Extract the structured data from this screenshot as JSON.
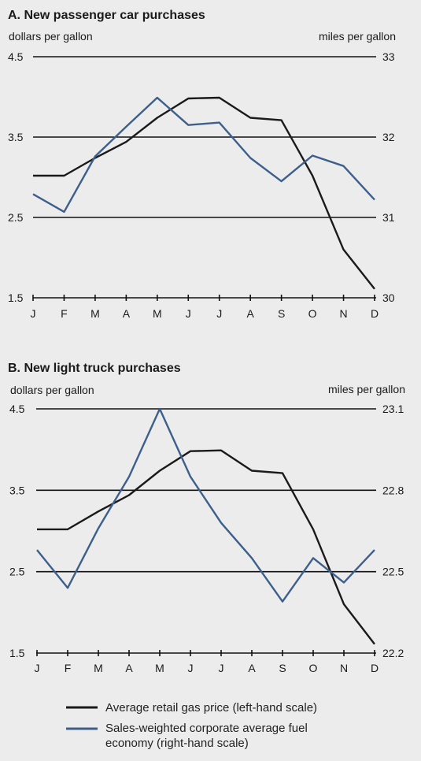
{
  "months": [
    "J",
    "F",
    "M",
    "A",
    "M",
    "J",
    "J",
    "A",
    "S",
    "O",
    "N",
    "D"
  ],
  "colors": {
    "gas_price": "#1a1a1a",
    "fuel_economy": "#3d5f8c"
  },
  "legend": {
    "gas_price": "Average retail gas price (left-hand scale)",
    "fuel_economy_line1": "Sales-weighted corporate average fuel",
    "fuel_economy_line2": "economy (right-hand scale)"
  },
  "chart_data": [
    {
      "type": "line",
      "title": "A. New passenger car purchases",
      "ylabel_left": "dollars per gallon",
      "ylabel_right": "miles per gallon",
      "categories": [
        "J",
        "F",
        "M",
        "A",
        "M",
        "J",
        "J",
        "A",
        "S",
        "O",
        "N",
        "D"
      ],
      "ylim_left": [
        1.5,
        4.5
      ],
      "ylim_right": [
        30,
        33
      ],
      "left_ticks": [
        "4.5",
        "3.5",
        "2.5",
        "1.5"
      ],
      "right_ticks": [
        "33",
        "32",
        "31",
        "30"
      ],
      "grid": true,
      "series": [
        {
          "axis": "left",
          "values": [
            3.02,
            3.02,
            3.24,
            3.44,
            3.74,
            3.98,
            3.99,
            3.74,
            3.71,
            3.02,
            2.1,
            1.61
          ]
        },
        {
          "axis": "right",
          "values": [
            31.29,
            31.07,
            31.76,
            32.13,
            32.49,
            32.15,
            32.18,
            31.74,
            31.45,
            31.77,
            31.64,
            31.22
          ]
        }
      ]
    },
    {
      "type": "line",
      "title": "B. New light truck purchases",
      "ylabel_left": "dollars per gallon",
      "ylabel_right": "miles per gallon",
      "categories": [
        "J",
        "F",
        "M",
        "A",
        "M",
        "J",
        "J",
        "A",
        "S",
        "O",
        "N",
        "D"
      ],
      "ylim_left": [
        1.5,
        4.5
      ],
      "ylim_right": [
        22.2,
        23.1
      ],
      "left_ticks": [
        "4.5",
        "3.5",
        "2.5",
        "1.5"
      ],
      "right_ticks": [
        "23.1",
        "22.8",
        "22.5",
        "22.2"
      ],
      "grid": true,
      "series": [
        {
          "axis": "left",
          "values": [
            3.02,
            3.02,
            3.24,
            3.44,
            3.74,
            3.98,
            3.99,
            3.74,
            3.71,
            3.02,
            2.1,
            1.61
          ]
        },
        {
          "axis": "right",
          "values": [
            22.58,
            22.44,
            22.66,
            22.85,
            23.1,
            22.85,
            22.68,
            22.55,
            22.39,
            22.55,
            22.46,
            22.58
          ]
        }
      ]
    }
  ]
}
